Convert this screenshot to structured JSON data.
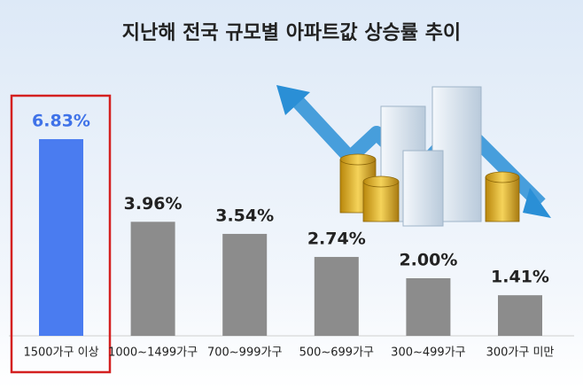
{
  "chart_data": {
    "type": "bar",
    "title": "지난해 전국 규모별 아파트값 상승률 추이",
    "categories": [
      "1500가구 이상",
      "1000~1499가구",
      "700~999가구",
      "500~699가구",
      "300~499가구",
      "300가구 미만"
    ],
    "values": [
      6.83,
      3.96,
      3.54,
      2.74,
      2.0,
      1.41
    ],
    "value_labels": [
      "6.83%",
      "3.96%",
      "3.54%",
      "2.74%",
      "2.00%",
      "1.41%"
    ],
    "colors": [
      "#4a7cf0",
      "#8c8c8c",
      "#8c8c8c",
      "#8c8c8c",
      "#8c8c8c",
      "#8c8c8c"
    ],
    "label_colors": [
      "#3f72e8",
      "#222222",
      "#222222",
      "#222222",
      "#222222",
      "#222222"
    ],
    "highlight": 0,
    "highlight_color": "#d42020"
  }
}
